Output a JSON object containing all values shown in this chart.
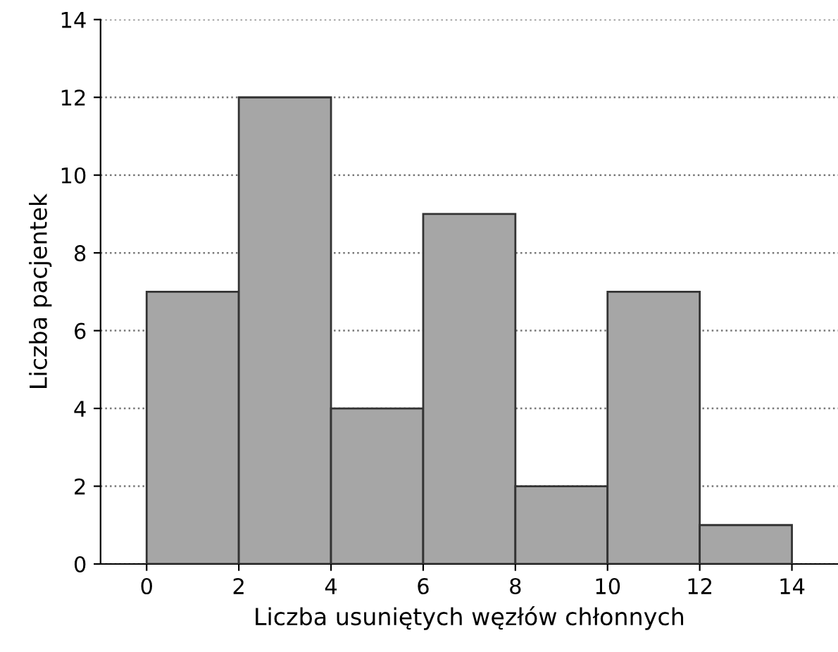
{
  "chart_data": {
    "type": "histogram",
    "xlabel": "Liczba usuniętych węzłów chłonnych",
    "ylabel": "Liczba pacjentek",
    "bins": [
      0,
      2,
      4,
      6,
      8,
      10,
      12,
      14
    ],
    "values": [
      7,
      12,
      4,
      9,
      2,
      7,
      1
    ],
    "color": "#a6a6a6",
    "xlim": [
      -1,
      15
    ],
    "xticks": [
      0,
      2,
      4,
      6,
      8,
      10,
      12,
      14
    ],
    "ylim": [
      0,
      14
    ],
    "yticks": [
      0,
      2,
      4,
      6,
      8,
      10,
      12,
      14
    ],
    "grid": "y"
  }
}
